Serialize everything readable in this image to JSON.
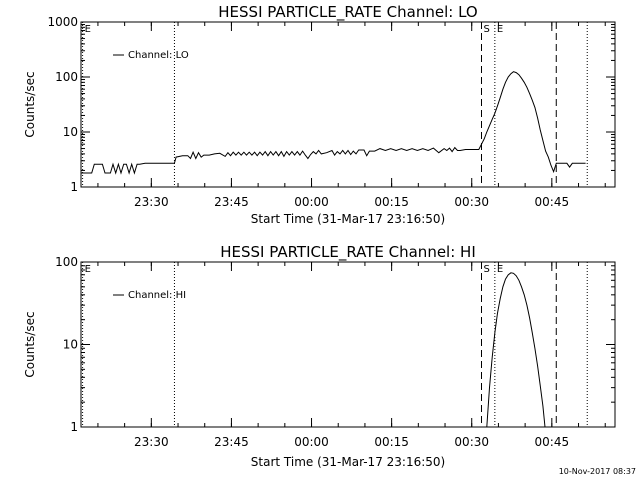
{
  "footer": {
    "timestamp": "10-Nov-2017 08:37"
  },
  "chart_data": [
    {
      "type": "line",
      "title": "HESSI PARTICLE_RATE Channel: LO",
      "xlabel": "Start Time (31-Mar-17 23:16:50)",
      "ylabel": "Counts/sec",
      "x_unit": "minutes since 23:16:50",
      "xlim": [
        0,
        100
      ],
      "ylim": [
        1,
        1000
      ],
      "yscale": "log",
      "grid": false,
      "legend": "top-left",
      "x_ticks": [
        {
          "value": 13.17,
          "label": "23:30"
        },
        {
          "value": 28.17,
          "label": "23:45"
        },
        {
          "value": 43.17,
          "label": "00:00"
        },
        {
          "value": 58.17,
          "label": "00:15"
        },
        {
          "value": 73.17,
          "label": "00:30"
        },
        {
          "value": 88.17,
          "label": "00:45"
        }
      ],
      "y_ticks": [
        {
          "value": 1,
          "label": "1"
        },
        {
          "value": 10,
          "label": "10"
        },
        {
          "value": 100,
          "label": "100"
        },
        {
          "value": 1000,
          "label": "1000"
        }
      ],
      "markers": [
        {
          "x": 0.3,
          "style": "dotted",
          "label": "E"
        },
        {
          "x": 17.5,
          "style": "dotted",
          "label": ""
        },
        {
          "x": 75.0,
          "style": "dashed",
          "label": "S"
        },
        {
          "x": 77.5,
          "style": "dotted",
          "label": "E"
        },
        {
          "x": 89.0,
          "style": "dashed",
          "label": ""
        },
        {
          "x": 94.8,
          "style": "dotted",
          "label": ""
        }
      ],
      "series": [
        {
          "name": "Channel: LO",
          "points": [
            [
              0,
              1.8
            ],
            [
              2,
              1.8
            ],
            [
              2.5,
              2.6
            ],
            [
              4,
              2.6
            ],
            [
              4.5,
              1.8
            ],
            [
              5.5,
              1.8
            ],
            [
              6,
              2.6
            ],
            [
              6.5,
              1.8
            ],
            [
              7,
              2.6
            ],
            [
              7.5,
              1.8
            ],
            [
              8,
              2.6
            ],
            [
              8.5,
              2.6
            ],
            [
              9,
              1.8
            ],
            [
              9.5,
              2.6
            ],
            [
              10,
              1.8
            ],
            [
              10.5,
              2.6
            ],
            [
              11,
              2.6
            ],
            [
              12,
              2.7
            ],
            [
              14,
              2.7
            ],
            [
              16,
              2.7
            ],
            [
              17.5,
              2.7
            ],
            [
              17.8,
              3.5
            ],
            [
              19,
              3.7
            ],
            [
              20,
              3.7
            ],
            [
              20.5,
              3.3
            ],
            [
              21,
              4.3
            ],
            [
              21.5,
              3.3
            ],
            [
              22,
              4.2
            ],
            [
              22.5,
              3.5
            ],
            [
              23,
              3.8
            ],
            [
              24,
              3.8
            ],
            [
              25,
              4.0
            ],
            [
              26,
              4.1
            ],
            [
              27,
              3.6
            ],
            [
              27.5,
              4.2
            ],
            [
              28,
              3.7
            ],
            [
              28.5,
              4.3
            ],
            [
              29,
              3.8
            ],
            [
              29.5,
              4.3
            ],
            [
              30,
              3.8
            ],
            [
              30.5,
              4.3
            ],
            [
              31,
              3.8
            ],
            [
              31.5,
              4.3
            ],
            [
              32,
              3.8
            ],
            [
              32.5,
              4.3
            ],
            [
              33,
              3.7
            ],
            [
              33.5,
              4.3
            ],
            [
              34,
              3.8
            ],
            [
              34.5,
              4.4
            ],
            [
              35,
              3.7
            ],
            [
              35.5,
              4.4
            ],
            [
              36,
              3.8
            ],
            [
              36.5,
              4.4
            ],
            [
              37,
              3.7
            ],
            [
              37.5,
              4.4
            ],
            [
              38,
              3.6
            ],
            [
              38.5,
              4.4
            ],
            [
              39,
              3.8
            ],
            [
              39.5,
              4.4
            ],
            [
              40,
              3.8
            ],
            [
              40.5,
              4.4
            ],
            [
              41,
              3.8
            ],
            [
              41.5,
              4.5
            ],
            [
              42,
              3.8
            ],
            [
              42.5,
              3.3
            ],
            [
              43,
              3.9
            ],
            [
              43.5,
              4.4
            ],
            [
              44,
              4.0
            ],
            [
              44.5,
              4.6
            ],
            [
              45,
              4.0
            ],
            [
              46,
              4.2
            ],
            [
              47,
              4.6
            ],
            [
              47.5,
              3.8
            ],
            [
              48,
              4.4
            ],
            [
              48.5,
              4.0
            ],
            [
              49,
              4.6
            ],
            [
              49.5,
              4.0
            ],
            [
              50,
              4.6
            ],
            [
              50.5,
              3.9
            ],
            [
              51,
              4.5
            ],
            [
              51.5,
              4.0
            ],
            [
              52,
              4.7
            ],
            [
              53,
              4.7
            ],
            [
              53.5,
              3.7
            ],
            [
              54,
              4.5
            ],
            [
              55,
              4.5
            ],
            [
              56,
              5.0
            ],
            [
              57,
              4.6
            ],
            [
              58,
              5.0
            ],
            [
              59,
              4.6
            ],
            [
              60,
              5.0
            ],
            [
              61,
              4.6
            ],
            [
              62,
              5.0
            ],
            [
              63,
              4.6
            ],
            [
              64,
              5.0
            ],
            [
              65,
              4.6
            ],
            [
              66,
              5.1
            ],
            [
              67,
              4.2
            ],
            [
              68,
              5.0
            ],
            [
              68.5,
              4.6
            ],
            [
              69,
              5.1
            ],
            [
              69.5,
              4.4
            ],
            [
              70,
              5.2
            ],
            [
              70.5,
              4.6
            ],
            [
              71,
              4.6
            ],
            [
              72,
              4.8
            ],
            [
              73,
              4.8
            ],
            [
              74,
              4.8
            ],
            [
              74.5,
              4.8
            ],
            [
              75,
              6
            ],
            [
              75.5,
              7.5
            ],
            [
              76,
              10
            ],
            [
              76.5,
              13
            ],
            [
              77,
              17
            ],
            [
              77.5,
              22
            ],
            [
              78,
              30
            ],
            [
              78.5,
              42
            ],
            [
              79,
              60
            ],
            [
              79.5,
              80
            ],
            [
              80,
              100
            ],
            [
              80.5,
              115
            ],
            [
              81,
              125
            ],
            [
              81.5,
              120
            ],
            [
              82,
              110
            ],
            [
              82.5,
              95
            ],
            [
              83,
              80
            ],
            [
              83.5,
              65
            ],
            [
              84,
              50
            ],
            [
              84.5,
              38
            ],
            [
              85,
              28
            ],
            [
              85.5,
              18
            ],
            [
              86,
              11
            ],
            [
              86.5,
              7
            ],
            [
              87,
              4.5
            ],
            [
              87.5,
              3.5
            ],
            [
              88,
              2.5
            ],
            [
              88.5,
              1.9
            ],
            [
              89,
              2.7
            ],
            [
              90,
              2.7
            ],
            [
              91,
              2.7
            ],
            [
              91.5,
              2.3
            ],
            [
              92,
              2.7
            ],
            [
              93,
              2.7
            ],
            [
              94,
              2.7
            ],
            [
              94.5,
              2.7
            ]
          ]
        }
      ]
    },
    {
      "type": "line",
      "title": "HESSI PARTICLE_RATE Channel: HI",
      "xlabel": "Start Time (31-Mar-17 23:16:50)",
      "ylabel": "Counts/sec",
      "x_unit": "minutes since 23:16:50",
      "xlim": [
        0,
        100
      ],
      "ylim": [
        1,
        100
      ],
      "yscale": "log",
      "grid": false,
      "legend": "top-left",
      "x_ticks": [
        {
          "value": 13.17,
          "label": "23:30"
        },
        {
          "value": 28.17,
          "label": "23:45"
        },
        {
          "value": 43.17,
          "label": "00:00"
        },
        {
          "value": 58.17,
          "label": "00:15"
        },
        {
          "value": 73.17,
          "label": "00:30"
        },
        {
          "value": 88.17,
          "label": "00:45"
        }
      ],
      "y_ticks": [
        {
          "value": 1,
          "label": "1"
        },
        {
          "value": 10,
          "label": "10"
        },
        {
          "value": 100,
          "label": "100"
        }
      ],
      "markers": [
        {
          "x": 0.3,
          "style": "dotted",
          "label": "E"
        },
        {
          "x": 17.5,
          "style": "dotted",
          "label": ""
        },
        {
          "x": 75.0,
          "style": "dashed",
          "label": "S"
        },
        {
          "x": 77.5,
          "style": "dotted",
          "label": "E"
        },
        {
          "x": 89.0,
          "style": "dashed",
          "label": ""
        },
        {
          "x": 94.8,
          "style": "dotted",
          "label": ""
        }
      ],
      "series": [
        {
          "name": "Channel: HI",
          "points": [
            [
              76.0,
              1.0
            ],
            [
              76.5,
              3
            ],
            [
              77,
              7
            ],
            [
              77.5,
              14
            ],
            [
              78,
              24
            ],
            [
              78.5,
              36
            ],
            [
              79,
              50
            ],
            [
              79.5,
              62
            ],
            [
              80,
              70
            ],
            [
              80.5,
              74
            ],
            [
              81,
              73
            ],
            [
              81.5,
              68
            ],
            [
              82,
              60
            ],
            [
              82.5,
              50
            ],
            [
              83,
              40
            ],
            [
              83.5,
              30
            ],
            [
              84,
              21
            ],
            [
              84.5,
              14
            ],
            [
              85,
              9
            ],
            [
              85.5,
              5.5
            ],
            [
              86,
              3.2
            ],
            [
              86.5,
              1.8
            ],
            [
              86.9,
              1.0
            ]
          ]
        }
      ]
    }
  ]
}
